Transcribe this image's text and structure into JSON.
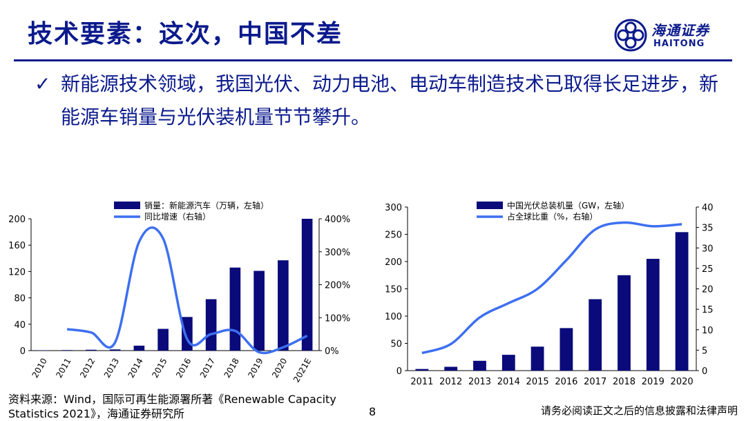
{
  "header": {
    "title": "技术要素：这次，中国不差",
    "logo": {
      "name_cn": "海通证券",
      "name_en": "HAITONG",
      "icon": "haitong-logo-icon"
    }
  },
  "bullet": {
    "icon": "check-icon",
    "text": "新能源技术领域，我国光伏、动力电池、电动车制造技术已取得长足进步，新能源车销量与光伏装机量节节攀升。"
  },
  "chart_data": [
    {
      "type": "bar",
      "categories": [
        "2010",
        "2011",
        "2012",
        "2013",
        "2014",
        "2015",
        "2016",
        "2017",
        "2018",
        "2019",
        "2020",
        "2021E"
      ],
      "series": [
        {
          "name": "销量：新能源汽车（万辆，左轴）",
          "type": "bar",
          "axis": "left",
          "values": [
            0.5,
            0.8,
            1.3,
            1.8,
            7.5,
            33,
            51,
            78,
            126,
            121,
            137,
            200
          ]
        },
        {
          "name": "同比增速（右轴）",
          "type": "line",
          "axis": "right",
          "values": [
            null,
            65,
            55,
            25,
            330,
            340,
            35,
            50,
            60,
            -5,
            10,
            45
          ]
        }
      ],
      "left_ticks": [
        "0",
        "40",
        "80",
        "120",
        "160",
        "200"
      ],
      "right_ticks": [
        "0%",
        "100%",
        "200%",
        "300%",
        "400%"
      ],
      "ylim_left": [
        0,
        200
      ],
      "ylim_right": [
        0,
        400
      ],
      "colors": {
        "bar": "#0a0a7a",
        "line": "#3d6ff0"
      },
      "legend": "top"
    },
    {
      "type": "bar",
      "categories": [
        "2011",
        "2012",
        "2013",
        "2014",
        "2015",
        "2016",
        "2017",
        "2018",
        "2019",
        "2020"
      ],
      "series": [
        {
          "name": "中国光伏总装机量（GW，左轴）",
          "type": "bar",
          "axis": "left",
          "values": [
            3,
            7,
            18,
            29,
            44,
            78,
            131,
            175,
            205,
            254
          ]
        },
        {
          "name": "占全球比重（%，右轴）",
          "type": "line",
          "axis": "right",
          "values": [
            4.3,
            6.5,
            13,
            16.5,
            20,
            27,
            34.5,
            36.2,
            35.3,
            35.8
          ]
        }
      ],
      "left_ticks": [
        "0",
        "50",
        "100",
        "150",
        "200",
        "250",
        "300"
      ],
      "right_ticks": [
        "0",
        "5",
        "10",
        "15",
        "20",
        "25",
        "30",
        "35",
        "40"
      ],
      "ylim_left": [
        0,
        300
      ],
      "ylim_right": [
        0,
        40
      ],
      "colors": {
        "bar": "#0a0a7a",
        "line": "#3d6ff0"
      },
      "legend": "top"
    }
  ],
  "footer": {
    "source": "资料来源：Wind，国际可再生能源署所著《Renewable Capacity Statistics 2021》，海通证券研究所",
    "page": "8",
    "disclaimer": "请务必阅读正文之后的信息披露和法律声明"
  }
}
